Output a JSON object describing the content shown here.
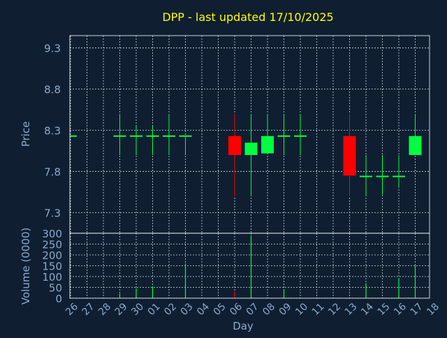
{
  "colors": {
    "background": "#0f1f31",
    "grid": "#cfd6de",
    "axis_text": "#8aaacd",
    "title": "#ffff00",
    "up": "#00ff40",
    "down": "#ff0000",
    "frame": "#ffffff"
  },
  "chart_data": {
    "type": "candlestick",
    "title": "DPP - last updated 17/10/2025",
    "xlabel": "Day",
    "price_ylabel": "Price",
    "volume_ylabel": "Volume (0000)",
    "x_tick_labels": [
      "26",
      "27",
      "28",
      "29",
      "30",
      "01",
      "02",
      "03",
      "04",
      "05",
      "06",
      "07",
      "08",
      "09",
      "10",
      "11",
      "12",
      "13",
      "14",
      "15",
      "16",
      "17",
      "18"
    ],
    "price_ylim": [
      7.05,
      9.45
    ],
    "price_ticks": [
      "7.3",
      "7.8",
      "8.3",
      "8.8",
      "9.3"
    ],
    "volume_ylim": [
      0,
      300
    ],
    "volume_ticks": [
      "0",
      "50",
      "100",
      "150",
      "200",
      "250",
      "300"
    ],
    "grid": true,
    "candles": [
      {
        "day": "26",
        "open": 8.23,
        "close": 8.23,
        "high": 8.23,
        "low": 8.23,
        "volume": 0
      },
      {
        "day": "29",
        "open": 8.23,
        "close": 8.23,
        "high": 8.5,
        "low": 8.0,
        "volume": 20
      },
      {
        "day": "30",
        "open": 8.23,
        "close": 8.23,
        "high": 8.35,
        "low": 8.0,
        "volume": 45
      },
      {
        "day": "01",
        "open": 8.23,
        "close": 8.23,
        "high": 8.35,
        "low": 8.0,
        "volume": 55
      },
      {
        "day": "02",
        "open": 8.23,
        "close": 8.23,
        "high": 8.5,
        "low": 8.0,
        "volume": 0
      },
      {
        "day": "03",
        "open": 8.23,
        "close": 8.23,
        "high": 8.23,
        "low": 8.0,
        "volume": 160
      },
      {
        "day": "06",
        "open": 8.23,
        "close": 8.0,
        "high": 8.5,
        "low": 7.5,
        "volume": 30
      },
      {
        "day": "07",
        "open": 8.0,
        "close": 8.15,
        "high": 8.5,
        "low": 7.5,
        "volume": 290
      },
      {
        "day": "08",
        "open": 8.02,
        "close": 8.23,
        "high": 8.5,
        "low": 8.02,
        "volume": 0
      },
      {
        "day": "09",
        "open": 8.23,
        "close": 8.23,
        "high": 8.5,
        "low": 8.0,
        "volume": 40
      },
      {
        "day": "10",
        "open": 8.23,
        "close": 8.23,
        "high": 8.5,
        "low": 8.0,
        "volume": 0
      },
      {
        "day": "13",
        "open": 8.23,
        "close": 7.75,
        "high": 8.5,
        "low": 7.5,
        "volume": 0
      },
      {
        "day": "14",
        "open": 7.74,
        "close": 7.74,
        "high": 8.0,
        "low": 7.5,
        "volume": 70
      },
      {
        "day": "15",
        "open": 7.74,
        "close": 7.74,
        "high": 8.0,
        "low": 7.52,
        "volume": 0
      },
      {
        "day": "16",
        "open": 7.74,
        "close": 7.74,
        "high": 8.0,
        "low": 7.6,
        "volume": 90
      },
      {
        "day": "17",
        "open": 8.0,
        "close": 8.23,
        "high": 8.5,
        "low": 8.0,
        "volume": 150
      }
    ]
  }
}
